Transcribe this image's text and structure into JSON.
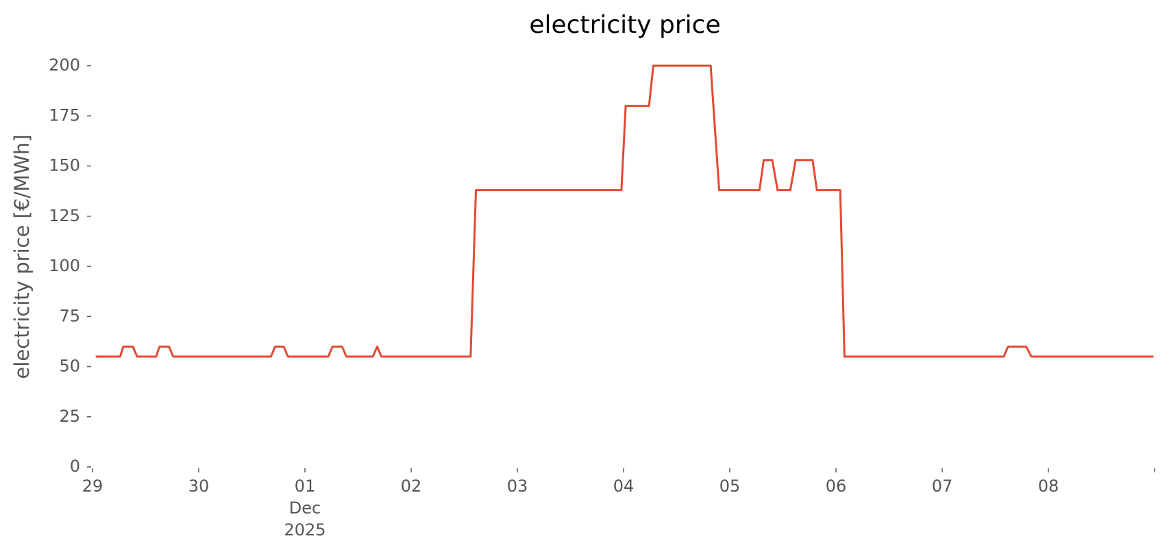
{
  "chart_data": {
    "type": "line",
    "title": "electricity price",
    "ylabel": "electricity price [€/MWh]",
    "x": [
      0.03,
      0.26,
      0.29,
      0.38,
      0.42,
      0.6,
      0.63,
      0.72,
      0.76,
      1.68,
      1.72,
      1.8,
      1.84,
      2.22,
      2.26,
      2.35,
      2.39,
      2.64,
      2.68,
      2.72,
      3.56,
      3.61,
      4.98,
      5.02,
      5.24,
      5.28,
      5.82,
      5.9,
      6.28,
      6.32,
      6.4,
      6.45,
      6.57,
      6.62,
      6.78,
      6.82,
      7.04,
      7.08,
      8.58,
      8.62,
      8.79,
      8.84,
      9.99
    ],
    "series": [
      {
        "name": "electricity price",
        "color": "#e24a33",
        "values": [
          55,
          55,
          60,
          60,
          55,
          55,
          60,
          60,
          55,
          55,
          60,
          60,
          55,
          55,
          60,
          60,
          55,
          55,
          60,
          55,
          55,
          138,
          138,
          180,
          180,
          200,
          200,
          138,
          138,
          153,
          153,
          138,
          138,
          153,
          153,
          138,
          138,
          55,
          55,
          60,
          60,
          55,
          55
        ]
      }
    ],
    "xlim": [
      0,
      10
    ],
    "xticks": [
      {
        "value": 0,
        "label": "29"
      },
      {
        "value": 1,
        "label": "30"
      },
      {
        "value": 2,
        "label": "01\nDec\n2025"
      },
      {
        "value": 3,
        "label": "02"
      },
      {
        "value": 4,
        "label": "03"
      },
      {
        "value": 5,
        "label": "04"
      },
      {
        "value": 6,
        "label": "05"
      },
      {
        "value": 7,
        "label": "06"
      },
      {
        "value": 8,
        "label": "07"
      },
      {
        "value": 9,
        "label": "08"
      },
      {
        "value": 10,
        "label": null
      }
    ],
    "ylim": [
      0,
      200
    ],
    "yticks": [
      0,
      25,
      50,
      75,
      100,
      125,
      150,
      175,
      200
    ],
    "grid": false
  }
}
